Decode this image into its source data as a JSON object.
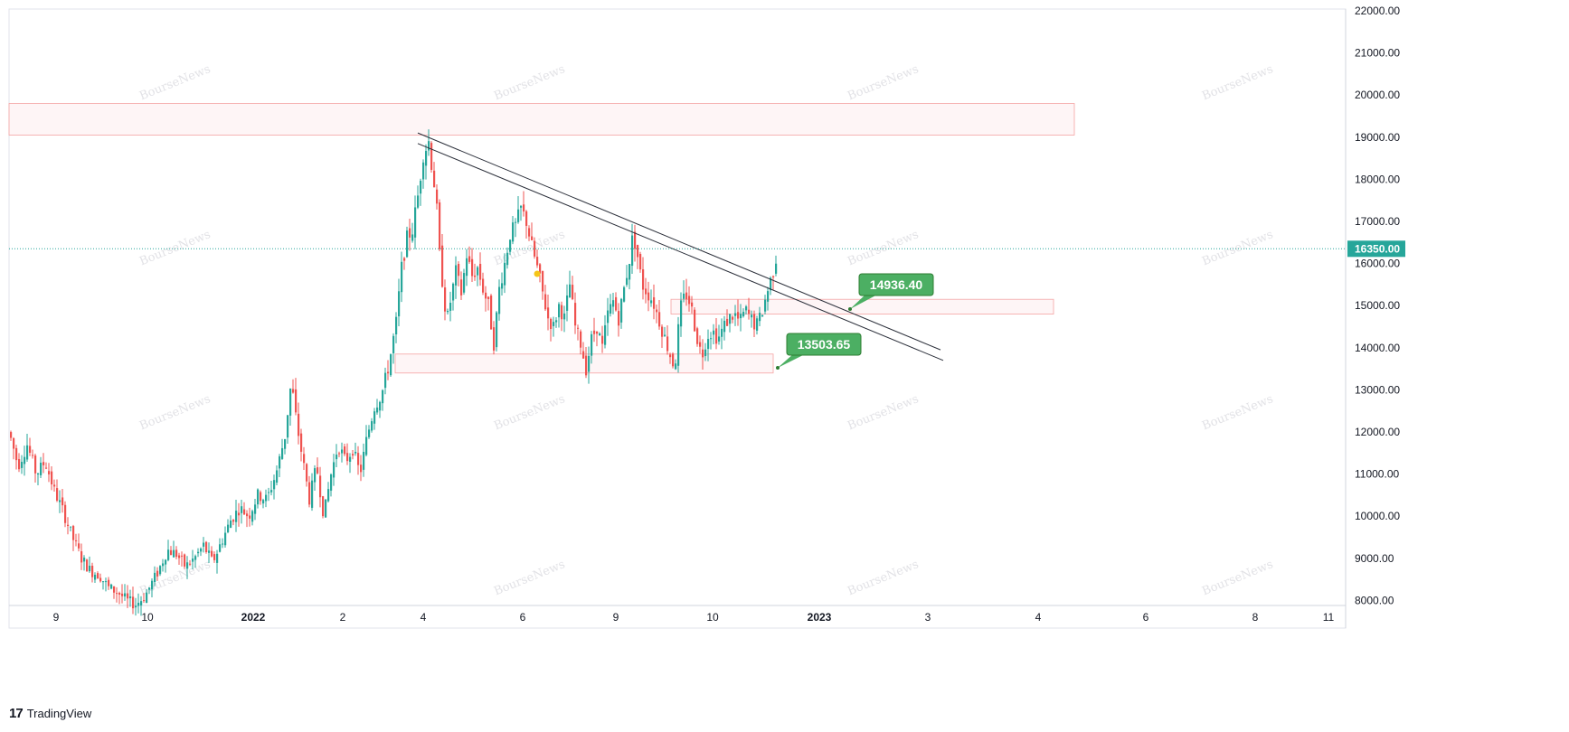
{
  "brand": {
    "logo": "17",
    "name": "TradingView"
  },
  "watermark": "BourseNews",
  "last_price": {
    "label": "16350.00",
    "value": 16350,
    "color": "#26a69a"
  },
  "callouts": [
    {
      "label": "14936.40",
      "value": 14936.4
    },
    {
      "label": "13503.65",
      "value": 13503.65
    }
  ],
  "colors": {
    "up": "#26a69a",
    "down": "#ef5350",
    "callout": "#4caf63",
    "zone_border": "#f5a3a3",
    "zone_fill": "#fef5f6",
    "trendline": "#2a2e39"
  },
  "chart_data": {
    "type": "candlestick",
    "ylim": [
      8000,
      22000
    ],
    "y_ticks": [
      "8000.00",
      "9000.00",
      "10000.00",
      "11000.00",
      "12000.00",
      "13000.00",
      "14000.00",
      "15000.00",
      "16000.00",
      "17000.00",
      "18000.00",
      "19000.00",
      "20000.00",
      "21000.00",
      "22000.00"
    ],
    "x_ticks": [
      {
        "label": "9",
        "bold": false
      },
      {
        "label": "10",
        "bold": false
      },
      {
        "label": "2022",
        "bold": true
      },
      {
        "label": "2",
        "bold": false
      },
      {
        "label": "4",
        "bold": false
      },
      {
        "label": "6",
        "bold": false
      },
      {
        "label": "9",
        "bold": false
      },
      {
        "label": "10",
        "bold": false
      },
      {
        "label": "2023",
        "bold": true
      },
      {
        "label": "3",
        "bold": false
      },
      {
        "label": "4",
        "bold": false
      },
      {
        "label": "6",
        "bold": false
      },
      {
        "label": "8",
        "bold": false
      },
      {
        "label": "11",
        "bold": false
      }
    ],
    "price_path": [
      [
        0,
        12300
      ],
      [
        10,
        12000
      ],
      [
        20,
        11200
      ],
      [
        30,
        11700
      ],
      [
        40,
        11000
      ],
      [
        50,
        11300
      ],
      [
        60,
        10600
      ],
      [
        70,
        10100
      ],
      [
        80,
        9500
      ],
      [
        90,
        9000
      ],
      [
        100,
        8700
      ],
      [
        110,
        8600
      ],
      [
        120,
        8300
      ],
      [
        130,
        8200
      ],
      [
        140,
        8000
      ],
      [
        150,
        7900
      ],
      [
        160,
        8100
      ],
      [
        175,
        8700
      ],
      [
        185,
        9200
      ],
      [
        195,
        9100
      ],
      [
        205,
        8800
      ],
      [
        215,
        9000
      ],
      [
        225,
        9300
      ],
      [
        235,
        8900
      ],
      [
        245,
        9400
      ],
      [
        255,
        9900
      ],
      [
        265,
        10200
      ],
      [
        275,
        10000
      ],
      [
        285,
        10500
      ],
      [
        295,
        10400
      ],
      [
        305,
        11000
      ],
      [
        315,
        11900
      ],
      [
        322,
        13200
      ],
      [
        328,
        12200
      ],
      [
        335,
        11300
      ],
      [
        342,
        10400
      ],
      [
        350,
        11200
      ],
      [
        358,
        10000
      ],
      [
        366,
        11000
      ],
      [
        374,
        11700
      ],
      [
        382,
        11300
      ],
      [
        390,
        11600
      ],
      [
        398,
        11000
      ],
      [
        406,
        11900
      ],
      [
        414,
        12600
      ],
      [
        422,
        12900
      ],
      [
        430,
        13600
      ],
      [
        438,
        14600
      ],
      [
        444,
        15900
      ],
      [
        450,
        16600
      ],
      [
        456,
        16800
      ],
      [
        462,
        17600
      ],
      [
        468,
        18600
      ],
      [
        474,
        18900
      ],
      [
        478,
        18200
      ],
      [
        482,
        17600
      ],
      [
        486,
        16200
      ],
      [
        490,
        15400
      ],
      [
        494,
        14600
      ],
      [
        498,
        15100
      ],
      [
        504,
        15800
      ],
      [
        510,
        15300
      ],
      [
        516,
        16200
      ],
      [
        522,
        15700
      ],
      [
        528,
        15900
      ],
      [
        534,
        15400
      ],
      [
        540,
        15000
      ],
      [
        546,
        14100
      ],
      [
        552,
        15400
      ],
      [
        558,
        16000
      ],
      [
        564,
        16700
      ],
      [
        570,
        16900
      ],
      [
        576,
        17300
      ],
      [
        582,
        17000
      ],
      [
        588,
        16400
      ],
      [
        594,
        15900
      ],
      [
        600,
        15300
      ],
      [
        606,
        14700
      ],
      [
        612,
        14500
      ],
      [
        618,
        15000
      ],
      [
        624,
        14700
      ],
      [
        630,
        15500
      ],
      [
        636,
        14500
      ],
      [
        642,
        14100
      ],
      [
        648,
        13500
      ],
      [
        654,
        14200
      ],
      [
        660,
        14500
      ],
      [
        666,
        14000
      ],
      [
        672,
        14800
      ],
      [
        678,
        15100
      ],
      [
        684,
        14700
      ],
      [
        690,
        15400
      ],
      [
        696,
        16100
      ],
      [
        700,
        16700
      ],
      [
        704,
        16300
      ],
      [
        710,
        15500
      ],
      [
        716,
        15300
      ],
      [
        722,
        15100
      ],
      [
        728,
        14700
      ],
      [
        734,
        14300
      ],
      [
        740,
        13900
      ],
      [
        746,
        13500
      ],
      [
        752,
        14900
      ],
      [
        758,
        15300
      ],
      [
        764,
        15000
      ],
      [
        770,
        14300
      ],
      [
        776,
        13800
      ],
      [
        782,
        14300
      ],
      [
        788,
        14400
      ],
      [
        794,
        14200
      ],
      [
        800,
        14500
      ],
      [
        806,
        14700
      ],
      [
        812,
        14800
      ],
      [
        818,
        14600
      ],
      [
        824,
        14900
      ],
      [
        830,
        14700
      ],
      [
        836,
        14500
      ],
      [
        842,
        14800
      ],
      [
        848,
        15300
      ],
      [
        852,
        15600
      ],
      [
        856,
        15900
      ],
      [
        860,
        16350
      ]
    ],
    "trendlines": [
      {
        "x1": 462,
        "y1": 19100,
        "x2": 1040,
        "y2": 13950
      },
      {
        "x1": 462,
        "y1": 18850,
        "x2": 1043,
        "y2": 13700
      }
    ],
    "zones": [
      {
        "x1": 10,
        "x2": 1188,
        "top": 19800,
        "bottom": 19050
      },
      {
        "x1": 742,
        "x2": 1165,
        "top": 15150,
        "bottom": 14800
      },
      {
        "x1": 437,
        "x2": 855,
        "top": 13850,
        "bottom": 13400
      }
    ]
  }
}
